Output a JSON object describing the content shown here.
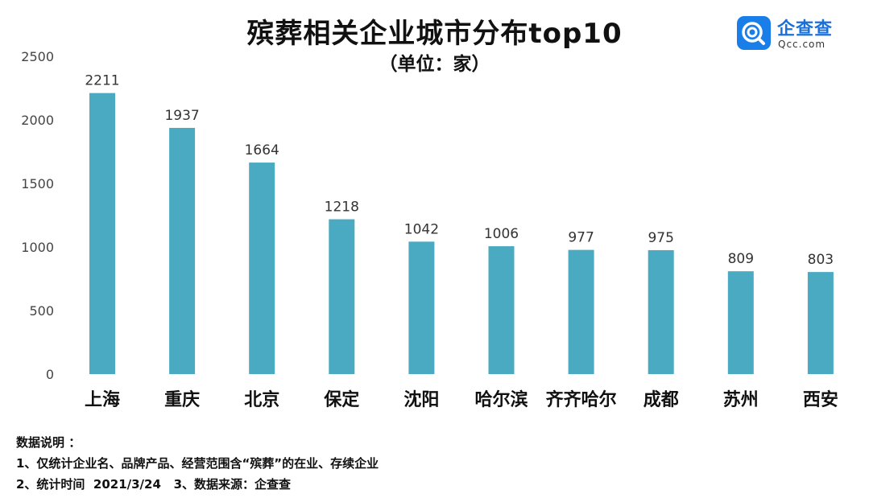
{
  "chart_data": {
    "type": "bar",
    "title": "殡葬相关企业城市分布top10",
    "subtitle": "（单位：家）",
    "categories": [
      "上海",
      "重庆",
      "北京",
      "保定",
      "沈阳",
      "哈尔滨",
      "齐齐哈尔",
      "成都",
      "苏州",
      "西安"
    ],
    "values": [
      2211,
      1937,
      1664,
      1218,
      1042,
      1006,
      977,
      975,
      809,
      803
    ],
    "ylim": [
      0,
      2500
    ],
    "yticks": [
      0,
      500,
      1000,
      1500,
      2000,
      2500
    ],
    "grid": false,
    "bar_color": "#4aaac2"
  },
  "logo": {
    "name": "企查查",
    "url": "Qcc.com",
    "color": "#1a7ee8"
  },
  "notes": {
    "heading": "数据说明 ：",
    "line1": "1、仅统计企业名、品牌产品、经营范围含“殡葬”的在业、存续企业",
    "line2": "2、统计时间  2021/3/24   3、数据来源：企查查"
  }
}
